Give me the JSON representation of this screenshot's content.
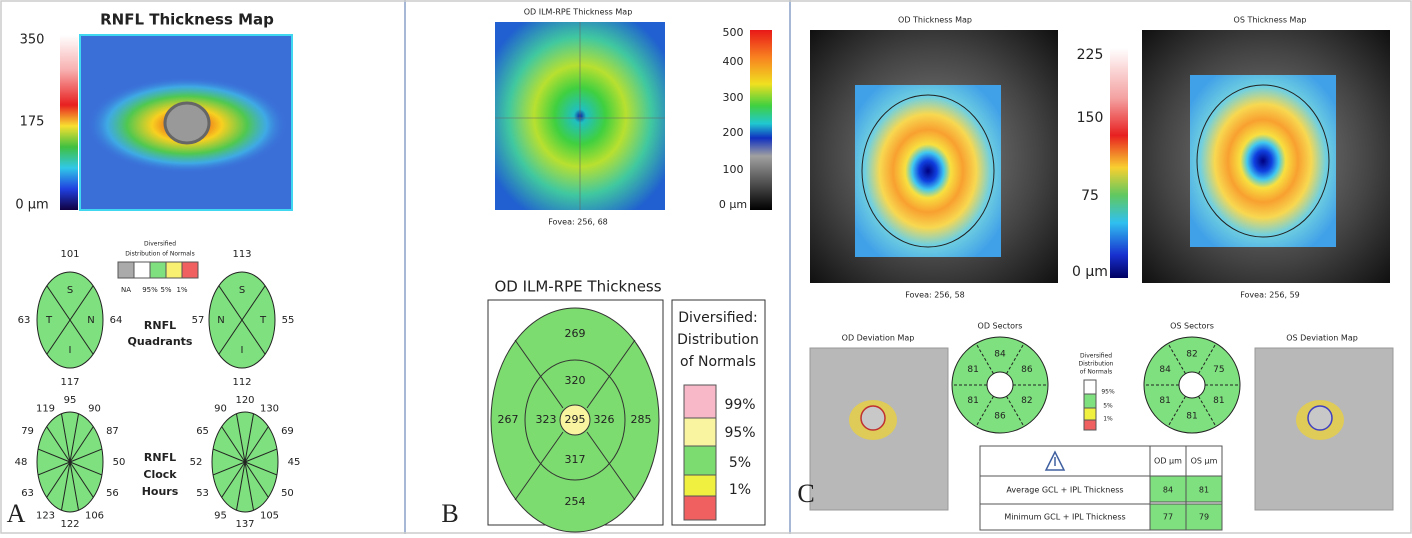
{
  "panel_a": {
    "label": "A",
    "map_title": "RNFL Thickness Map",
    "scale": [
      "350",
      "175",
      "0 µm"
    ],
    "legend": {
      "title": [
        "Diversified",
        "Distribution of Normals"
      ],
      "labels": [
        "NA",
        "95%",
        "5%",
        "1%"
      ]
    },
    "quadrants": {
      "label": [
        "RNFL",
        "Quadrants"
      ],
      "od": {
        "letters": [
          "S",
          "T",
          "N",
          "I"
        ],
        "values": [
          101,
          63,
          64,
          117
        ]
      },
      "os": {
        "letters": [
          "S",
          "N",
          "T",
          "I"
        ],
        "values": [
          113,
          57,
          55,
          112
        ]
      }
    },
    "clock_hours": {
      "label": [
        "RNFL",
        "Clock",
        "Hours"
      ],
      "od": [
        95,
        90,
        87,
        50,
        56,
        106,
        122,
        123,
        63,
        48,
        79,
        119
      ],
      "os": [
        120,
        130,
        69,
        45,
        50,
        105,
        137,
        95,
        53,
        52,
        65,
        90
      ]
    }
  },
  "panel_b": {
    "label": "B",
    "map_title": "OD ILM-RPE Thickness Map",
    "scale": [
      "500",
      "400",
      "300",
      "200",
      "100",
      "0 µm"
    ],
    "fovea": "Fovea: 256, 68",
    "thickness_title": "OD ILM-RPE Thickness",
    "sectors": {
      "outer_top": 269,
      "inner_top": 320,
      "outer_left": 267,
      "inner_left": 323,
      "center": 295,
      "inner_right": 326,
      "outer_right": 285,
      "inner_bottom": 317,
      "outer_bottom": 254
    },
    "legend": {
      "title": [
        "Diversified:",
        "Distribution",
        "of Normals"
      ],
      "labels": [
        "99%",
        "95%",
        "5%",
        "1%"
      ]
    }
  },
  "panel_c": {
    "label": "C",
    "od_map_title": "OD Thickness Map",
    "os_map_title": "OS Thickness Map",
    "scale": [
      "225",
      "150",
      "75",
      "0 µm"
    ],
    "od_fovea": "Fovea: 256, 58",
    "os_fovea": "Fovea: 256, 59",
    "od_deviation_title": "OD Deviation Map",
    "os_deviation_title": "OS Deviation Map",
    "od_sectors_title": "OD Sectors",
    "os_sectors_title": "OS Sectors",
    "od_sectors": [
      84,
      86,
      82,
      86,
      81,
      81
    ],
    "os_sectors": [
      82,
      75,
      81,
      81,
      81,
      84
    ],
    "legend": {
      "title": [
        "Diversified",
        "Distribution",
        "of Normals"
      ],
      "labels": [
        "95%",
        "5%",
        "1%"
      ]
    },
    "table": {
      "header": [
        "OD µm",
        "OS µm"
      ],
      "rows": [
        {
          "label": "Average GCL + IPL Thickness",
          "od": 84,
          "os": 81
        },
        {
          "label": "Minimum GCL + IPL Thickness",
          "od": 77,
          "os": 79
        }
      ]
    }
  }
}
